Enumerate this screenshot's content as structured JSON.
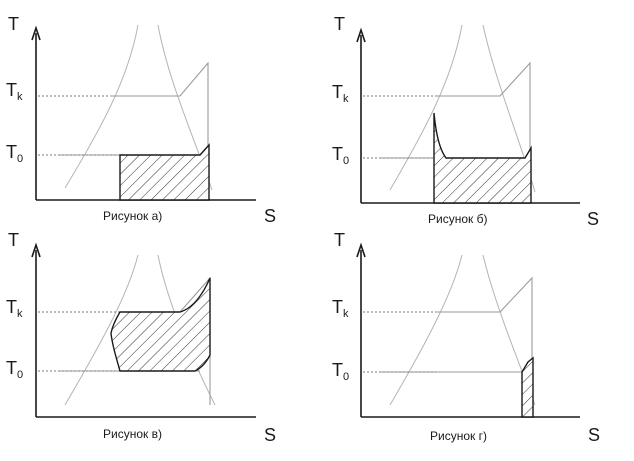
{
  "panels": [
    {
      "caption": "Рисунок а)",
      "y_axis": "T",
      "x_axis": "S",
      "tk_main": "T",
      "tk_sub": "k",
      "t0_main": "T",
      "t0_sub": "0"
    },
    {
      "caption": "Рисунок б)",
      "y_axis": "T",
      "x_axis": "S",
      "tk_main": "T",
      "tk_sub": "k",
      "t0_main": "T",
      "t0_sub": "0"
    },
    {
      "caption": "Рисунок в)",
      "y_axis": "T",
      "x_axis": "S",
      "tk_main": "T",
      "tk_sub": "k",
      "t0_main": "T",
      "t0_sub": "0"
    },
    {
      "caption": "Рисунок г)",
      "y_axis": "T",
      "x_axis": "S",
      "tk_main": "T",
      "tk_sub": "k",
      "t0_main": "T",
      "t0_sub": "0"
    }
  ]
}
